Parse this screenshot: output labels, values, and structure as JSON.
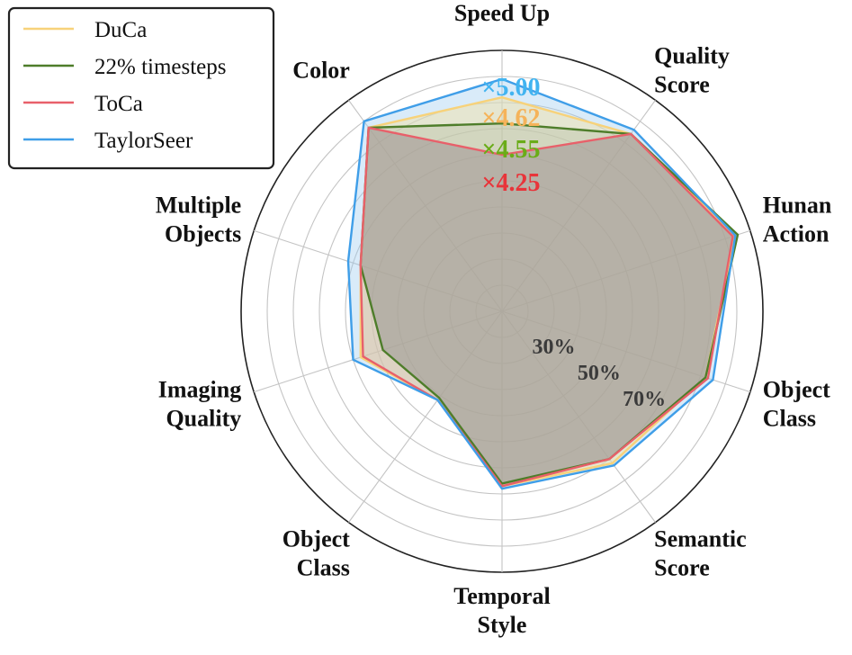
{
  "chart_data": {
    "type": "radar",
    "axes": [
      "Speed Up",
      "Quality Score",
      "Hunan Action",
      "Object Class",
      "Semantic Score",
      "Temporal Style",
      "Object Class",
      "Imaging Quality",
      "Multiple Objects",
      "Color"
    ],
    "axis_label_lines": [
      [
        "Speed Up"
      ],
      [
        "Quality",
        "Score"
      ],
      [
        "Hunan",
        "Action"
      ],
      [
        "Object",
        "Class"
      ],
      [
        "Semantic",
        "Score"
      ],
      [
        "Temporal",
        "Style"
      ],
      [
        "Object",
        "Class"
      ],
      [
        "Imaging",
        "Quality"
      ],
      [
        "Multiple",
        "Objects"
      ],
      [
        "Color"
      ]
    ],
    "rlim": [
      0,
      100
    ],
    "ring_ticks": [
      10,
      20,
      30,
      40,
      50,
      60,
      70,
      80,
      90,
      100
    ],
    "ring_tick_labels": [
      {
        "value": 30,
        "label": "30%"
      },
      {
        "value": 50,
        "label": "50%"
      },
      {
        "value": 70,
        "label": "70%"
      }
    ],
    "grid": true,
    "legend_position": "top-left",
    "series": [
      {
        "name": "DuCa",
        "color": "#f7d27a",
        "values": [
          82,
          84,
          94,
          82,
          72,
          67,
          42,
          57,
          57,
          87
        ]
      },
      {
        "name": "22% timesteps",
        "color": "#4e7d2a",
        "values": [
          72,
          84,
          95,
          82,
          70,
          66,
          41,
          48,
          57,
          87
        ]
      },
      {
        "name": "ToCa",
        "color": "#e8606a",
        "values": [
          60,
          84,
          93,
          83,
          70,
          67,
          42,
          56,
          57,
          87
        ]
      },
      {
        "name": "TaylorSeer",
        "color": "#3f9ee8",
        "values": [
          89,
          86,
          94,
          85,
          73,
          68,
          42,
          60,
          62,
          90
        ]
      }
    ],
    "speed_labels": [
      {
        "text": "×5.00",
        "color": "#42b4f0"
      },
      {
        "text": "×4.62",
        "color": "#f5b35a"
      },
      {
        "text": "×4.55",
        "color": "#6aac18"
      },
      {
        "text": "×4.25",
        "color": "#e8343a"
      }
    ]
  }
}
